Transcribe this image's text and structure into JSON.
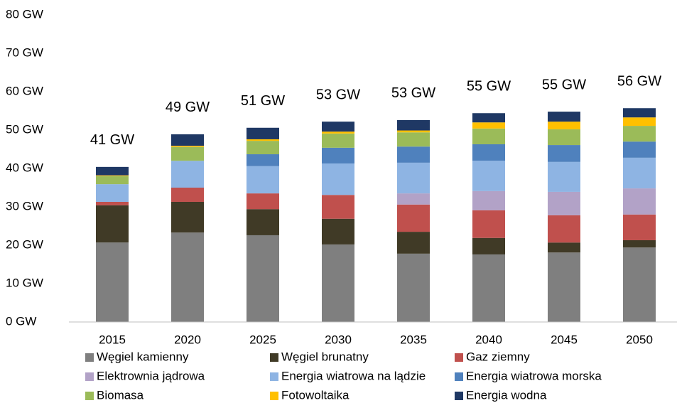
{
  "chart_data": {
    "type": "stacked_bar",
    "categories": [
      "2015",
      "2020",
      "2025",
      "2030",
      "2035",
      "2040",
      "2045",
      "2050"
    ],
    "series": [
      {
        "name": "Węgiel kamienny",
        "color": "#7f7f7f",
        "values": [
          20.7,
          23.3,
          22.6,
          20.2,
          17.8,
          17.6,
          18.1,
          19.4
        ]
      },
      {
        "name": "Węgiel brunatny",
        "color": "#403a26",
        "values": [
          9.7,
          8.0,
          6.8,
          6.7,
          5.7,
          4.3,
          2.6,
          1.9
        ]
      },
      {
        "name": "Gaz ziemny",
        "color": "#c0504d",
        "values": [
          0.9,
          3.7,
          4.1,
          6.2,
          7.1,
          7.2,
          7.1,
          6.7
        ]
      },
      {
        "name": "Elektrownia jądrowa",
        "color": "#b2a2c7",
        "values": [
          0,
          0,
          0,
          0,
          2.9,
          5.0,
          6.1,
          6.8
        ]
      },
      {
        "name": "Energia wiatrowa na lądzie",
        "color": "#8eb4e3",
        "values": [
          4.6,
          7.0,
          7.1,
          8.2,
          8.0,
          7.9,
          7.8,
          8.0
        ]
      },
      {
        "name": "Energia wiatrowa morska",
        "color": "#4f81bd",
        "values": [
          0,
          0,
          3.1,
          4.1,
          4.2,
          4.3,
          4.4,
          4.2
        ]
      },
      {
        "name": "Biomasa",
        "color": "#9bbb59",
        "values": [
          2.1,
          3.6,
          3.5,
          3.7,
          3.7,
          4.1,
          4.1,
          4.1
        ]
      },
      {
        "name": "Fotowoltaika",
        "color": "#ffc000",
        "values": [
          0.2,
          0.3,
          0.4,
          0.5,
          0.5,
          1.6,
          2.0,
          2.2
        ]
      },
      {
        "name": "Energia wodna",
        "color": "#1f3864",
        "values": [
          2.2,
          3.0,
          3.0,
          2.6,
          2.7,
          2.4,
          2.6,
          2.4
        ]
      }
    ],
    "total_labels": [
      "41 GW",
      "49 GW",
      "51 GW",
      "53 GW",
      "53 GW",
      "55 GW",
      "55 GW",
      "56 GW"
    ],
    "ylim": [
      0,
      80
    ],
    "yticks": [
      {
        "value": 0,
        "label": "0 GW"
      },
      {
        "value": 10,
        "label": "10 GW"
      },
      {
        "value": 20,
        "label": "20 GW"
      },
      {
        "value": 30,
        "label": "30 GW"
      },
      {
        "value": 40,
        "label": "40 GW"
      },
      {
        "value": 50,
        "label": "50 GW"
      },
      {
        "value": 60,
        "label": "60 GW"
      },
      {
        "value": 70,
        "label": "70 GW"
      },
      {
        "value": 80,
        "label": "80 GW"
      }
    ],
    "grid": false,
    "legend": "bottom"
  }
}
